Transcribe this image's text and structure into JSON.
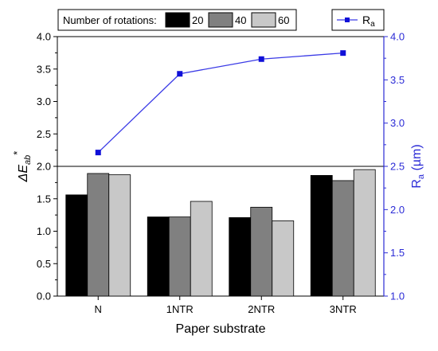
{
  "colors": {
    "axis": "#000000",
    "ra_axis": "#2b2bd6",
    "ra_line": "#3a3ae6",
    "ra_marker": "#1010d8",
    "bar_20": "#000000",
    "bar_40": "#808080",
    "bar_60": "#c8c8c8"
  },
  "chart_data": {
    "type": "bar",
    "xlabel": "Paper substrate",
    "ylabel_left": {
      "main": "ΔE",
      "sub": "ab",
      "sup": "*"
    },
    "ylabel_right": {
      "main": "R",
      "sub": "a",
      "unit": " (µm)"
    },
    "categories": [
      "N",
      "1NTR",
      "2NTR",
      "3NTR"
    ],
    "ylim_left": [
      0,
      4.0
    ],
    "yticks_left": [
      "0.0",
      "0.5",
      "1.0",
      "1.5",
      "2.0",
      "2.5",
      "3.0",
      "3.5",
      "4.0"
    ],
    "ylim_right": [
      1.0,
      4.0
    ],
    "yticks_right": [
      "1.0",
      "1.5",
      "2.0",
      "2.5",
      "3.0",
      "3.5",
      "4.0"
    ],
    "reference_line_left": 2.0,
    "legend_bars": {
      "title": "Number of rotations:",
      "placement": "top-left"
    },
    "legend_line": {
      "label_main": "R",
      "label_sub": "a",
      "placement": "top-right"
    },
    "series": [
      {
        "name": "20",
        "values": [
          1.56,
          1.22,
          1.21,
          1.86
        ]
      },
      {
        "name": "40",
        "values": [
          1.89,
          1.22,
          1.37,
          1.78
        ]
      },
      {
        "name": "60",
        "values": [
          1.87,
          1.46,
          1.16,
          1.95
        ]
      }
    ],
    "line_series": {
      "name": "Ra",
      "axis": "right",
      "values": [
        2.66,
        3.57,
        3.74,
        3.81
      ]
    }
  }
}
